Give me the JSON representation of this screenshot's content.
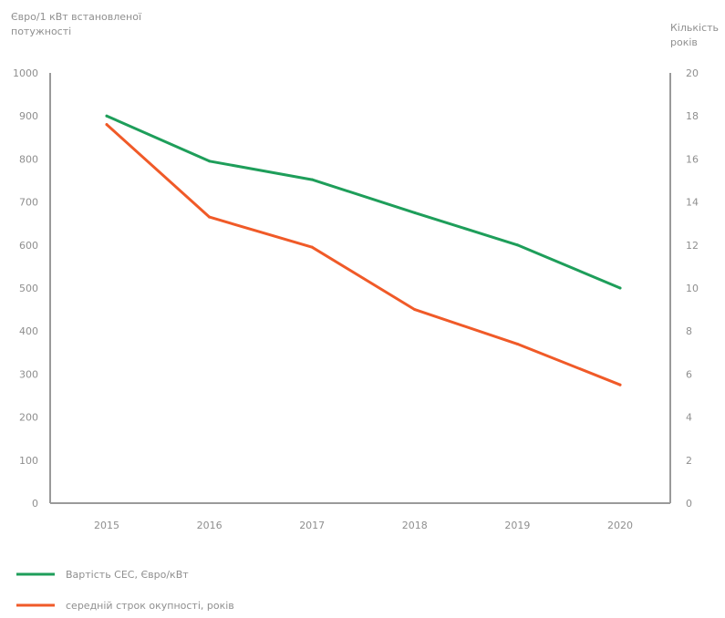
{
  "chart_data": {
    "type": "line",
    "categories": [
      "2015",
      "2016",
      "2017",
      "2018",
      "2019",
      "2020"
    ],
    "y_left": {
      "title_lines": [
        "Євро/1 кВт встановленої",
        "потужності"
      ],
      "ylim": [
        0,
        1000
      ],
      "ticks": [
        "0",
        "100",
        "200",
        "300",
        "400",
        "500",
        "600",
        "700",
        "800",
        "900",
        "1000"
      ]
    },
    "y_right": {
      "title_lines": [
        "Кількість",
        "років"
      ],
      "ylim": [
        0,
        20
      ],
      "ticks": [
        "0",
        "2",
        "4",
        "6",
        "8",
        "10",
        "12",
        "14",
        "16",
        "18",
        "20"
      ]
    },
    "series": [
      {
        "name": "Вартість СЕС, Євро/кВт",
        "axis": "left",
        "color": "#1e9e5a",
        "values": [
          900,
          795,
          752,
          675,
          600,
          500
        ]
      },
      {
        "name": "середній строк окупності, років",
        "axis": "right",
        "color": "#f05a28",
        "values": [
          17.6,
          13.3,
          11.9,
          9.0,
          7.4,
          5.5
        ]
      }
    ],
    "grid": false,
    "legend_position": "bottom-left"
  }
}
